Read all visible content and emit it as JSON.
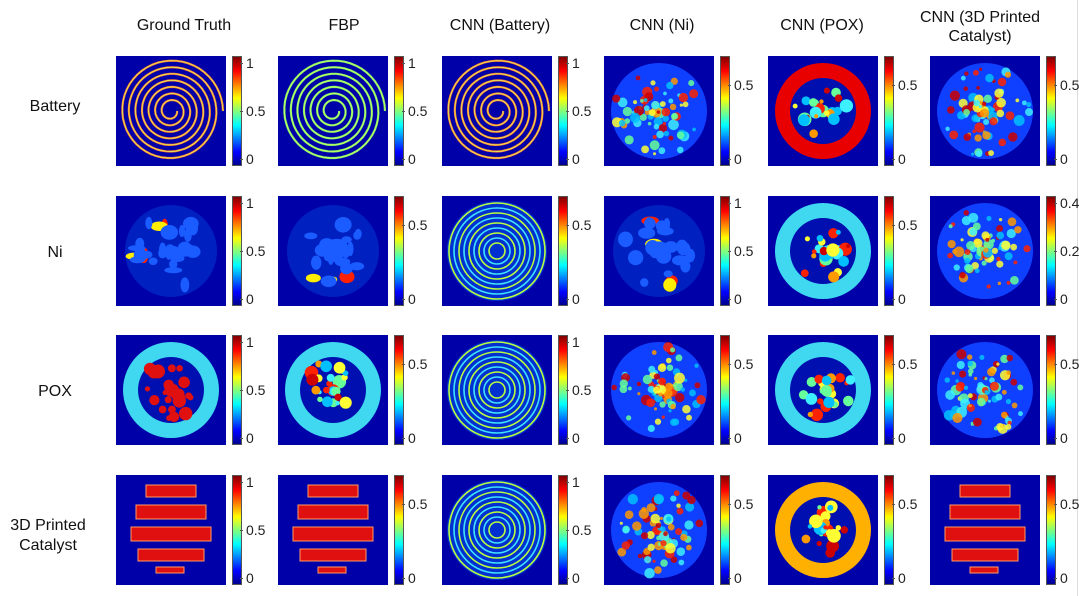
{
  "figure": {
    "columns": [
      "Ground Truth",
      "FBP",
      "CNN (Battery)",
      "CNN (Ni)",
      "CNN (POX)",
      "CNN (3D Printed Catalyst)"
    ],
    "rows": [
      "Battery",
      "Ni",
      "POX",
      "3D Printed Catalyst"
    ],
    "colormap": [
      "#00008f",
      "#0000ff",
      "#00ffff",
      "#ffff00",
      "#ff0000",
      "#800000"
    ],
    "cells": [
      [
        {
          "pattern": "spiral",
          "ticks": [
            "1",
            "0.5",
            "0"
          ]
        },
        {
          "pattern": "spiral",
          "ticks": [
            "1",
            "0.5",
            "0"
          ]
        },
        {
          "pattern": "spiral",
          "ticks": [
            "1",
            "0.5",
            "0"
          ]
        },
        {
          "pattern": "noisy-disk",
          "ticks": [
            "0.5",
            "0"
          ]
        },
        {
          "pattern": "ring",
          "ticks": [
            "0.5",
            "0"
          ]
        },
        {
          "pattern": "noisy-disk",
          "ticks": [
            "0.5",
            "0"
          ]
        }
      ],
      [
        {
          "pattern": "particles",
          "ticks": [
            "1",
            "0.5",
            "0"
          ]
        },
        {
          "pattern": "particles",
          "ticks": [
            "0.5",
            "0"
          ]
        },
        {
          "pattern": "rings",
          "ticks": [
            "0.5",
            "0"
          ]
        },
        {
          "pattern": "particles",
          "ticks": [
            "1",
            "0.5",
            "0"
          ]
        },
        {
          "pattern": "ring",
          "ticks": [
            "0.5",
            "0"
          ]
        },
        {
          "pattern": "noisy-disk",
          "ticks": [
            "0.4",
            "0.2",
            "0"
          ]
        }
      ],
      [
        {
          "pattern": "ring",
          "ticks": [
            "1",
            "0.5",
            "0"
          ]
        },
        {
          "pattern": "ring",
          "ticks": [
            "0.5",
            "0"
          ]
        },
        {
          "pattern": "rings",
          "ticks": [
            "1",
            "0.5",
            "0"
          ]
        },
        {
          "pattern": "noisy-disk",
          "ticks": [
            "0.5",
            "0"
          ]
        },
        {
          "pattern": "ring",
          "ticks": [
            "0.5",
            "0"
          ]
        },
        {
          "pattern": "noisy-disk",
          "ticks": [
            "0.5",
            "0"
          ]
        }
      ],
      [
        {
          "pattern": "slabs",
          "ticks": [
            "1",
            "0.5",
            "0"
          ]
        },
        {
          "pattern": "slabs",
          "ticks": [
            "0.5",
            "0"
          ]
        },
        {
          "pattern": "rings",
          "ticks": [
            "1",
            "0.5",
            "0"
          ]
        },
        {
          "pattern": "noisy-disk",
          "ticks": [
            "0.5",
            "0"
          ]
        },
        {
          "pattern": "ring",
          "ticks": [
            "0.5",
            "0"
          ]
        },
        {
          "pattern": "slabs",
          "ticks": [
            "0.5",
            "0"
          ]
        }
      ]
    ]
  }
}
